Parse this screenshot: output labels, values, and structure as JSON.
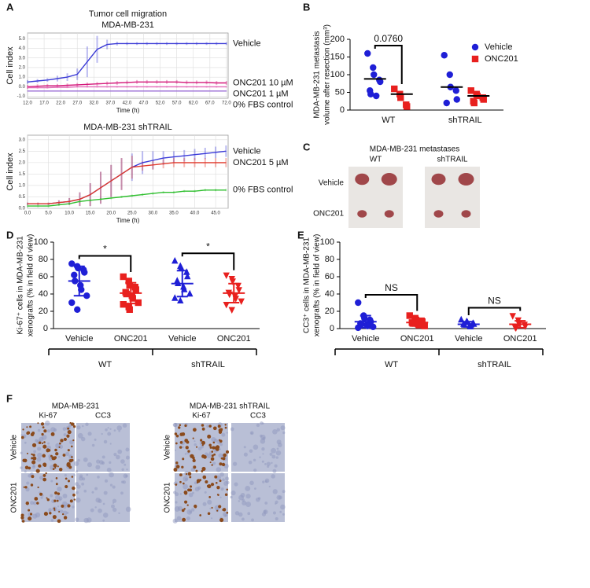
{
  "panel_labels": [
    "A",
    "B",
    "C",
    "D",
    "E",
    "F"
  ],
  "chart_data": [
    {
      "type": "line",
      "title": "Tumor cell migration",
      "subtitle": "MDA-MB-231",
      "xlabel": "Time (h)",
      "ylabel": "Cell index",
      "grid": true,
      "x": [
        12,
        15,
        18,
        21,
        24,
        27,
        30,
        33,
        36,
        39,
        42,
        45,
        48,
        51,
        54,
        57,
        60,
        63,
        66,
        69,
        72
      ],
      "xlim": [
        12,
        72.5
      ],
      "xticks": [
        {
          "value": 12,
          "label": "12.0"
        },
        {
          "value": 17,
          "label": "17.0"
        },
        {
          "value": 22,
          "label": "22.0"
        },
        {
          "value": 27,
          "label": "27.0"
        },
        {
          "value": 32,
          "label": "32.0"
        },
        {
          "value": 37,
          "label": "37.0"
        },
        {
          "value": 42,
          "label": "42.0"
        },
        {
          "value": 47,
          "label": "47.0"
        },
        {
          "value": 52,
          "label": "52.0"
        },
        {
          "value": 57,
          "label": "57.0"
        },
        {
          "value": 62,
          "label": "62.0"
        },
        {
          "value": 67,
          "label": "67.0"
        },
        {
          "value": 72,
          "label": "72.0"
        }
      ],
      "ylim": [
        -1.2,
        5.6
      ],
      "yticks": [
        {
          "value": -1,
          "label": "-1.0"
        },
        {
          "value": 0,
          "label": "0.0"
        },
        {
          "value": 1,
          "label": "1.0"
        },
        {
          "value": 2,
          "label": "2.0"
        },
        {
          "value": 3,
          "label": "3.0"
        },
        {
          "value": 4,
          "label": "4.0"
        },
        {
          "value": 5,
          "label": "5.0"
        }
      ],
      "series": [
        {
          "name": "Vehicle",
          "color": "#3b3bd6",
          "values": [
            0.5,
            0.6,
            0.7,
            0.85,
            1.0,
            1.3,
            2.6,
            3.9,
            4.4,
            4.5,
            4.5,
            4.5,
            4.5,
            4.5,
            4.5,
            4.5,
            4.5,
            4.5,
            4.5,
            4.5,
            4.5
          ],
          "errors": [
            0.2,
            0.2,
            0.2,
            0.3,
            0.4,
            0.6,
            1.6,
            1.4,
            0.5,
            0.2,
            0.15,
            0.15,
            0.15,
            0.15,
            0.15,
            0.15,
            0.15,
            0.15,
            0.15,
            0.15,
            0.15
          ]
        },
        {
          "name": "ONC201 10 µM",
          "color": "#d4187a",
          "values": [
            0.0,
            0.05,
            0.1,
            0.1,
            0.15,
            0.2,
            0.25,
            0.3,
            0.35,
            0.4,
            0.45,
            0.5,
            0.5,
            0.5,
            0.5,
            0.5,
            0.45,
            0.45,
            0.45,
            0.4,
            0.4
          ],
          "errors": [
            0.2,
            0.2,
            0.2,
            0.2,
            0.2,
            0.2,
            0.2,
            0.2,
            0.2,
            0.2,
            0.2,
            0.2,
            0.2,
            0.2,
            0.2,
            0.2,
            0.2,
            0.2,
            0.2,
            0.2,
            0.2
          ]
        },
        {
          "name": "ONC201 1 µM",
          "color": "#e36bb8",
          "values": [
            -0.1,
            -0.1,
            -0.1,
            -0.05,
            -0.05,
            0,
            0,
            0,
            0,
            0,
            0,
            0,
            0,
            0,
            0,
            0,
            0,
            0,
            0,
            0,
            0
          ],
          "errors": [
            0.1,
            0.1,
            0.1,
            0.1,
            0.1,
            0.1,
            0.1,
            0.1,
            0.1,
            0.1,
            0.1,
            0.1,
            0.1,
            0.1,
            0.1,
            0.1,
            0.1,
            0.1,
            0.1,
            0.1,
            0.1
          ]
        },
        {
          "name": "0% FBS control",
          "color": "#9a6bd6",
          "values": [
            -0.45,
            -0.45,
            -0.45,
            -0.45,
            -0.45,
            -0.45,
            -0.45,
            -0.45,
            -0.45,
            -0.45,
            -0.45,
            -0.45,
            -0.45,
            -0.45,
            -0.45,
            -0.45,
            -0.45,
            -0.45,
            -0.45,
            -0.45,
            -0.45
          ],
          "errors": [
            0.05,
            0.05,
            0.05,
            0.05,
            0.05,
            0.05,
            0.05,
            0.05,
            0.05,
            0.05,
            0.05,
            0.05,
            0.05,
            0.05,
            0.05,
            0.05,
            0.05,
            0.05,
            0.05,
            0.05,
            0.05
          ]
        }
      ]
    },
    {
      "type": "line",
      "title": "MDA-MB-231 shTRAIL",
      "xlabel": "Time (h)",
      "ylabel": "Cell index",
      "grid": true,
      "x": [
        0,
        2.5,
        5,
        7.5,
        10,
        12.5,
        15,
        17.5,
        20,
        22.5,
        25,
        27.5,
        30,
        32.5,
        35,
        37.5,
        40,
        42.5,
        45,
        47.5
      ],
      "xlim": [
        0,
        48
      ],
      "xticks": [
        {
          "value": 0,
          "label": "0.0"
        },
        {
          "value": 5,
          "label": "5.0"
        },
        {
          "value": 10,
          "label": "10.0"
        },
        {
          "value": 15,
          "label": "15.0"
        },
        {
          "value": 20,
          "label": "20.0"
        },
        {
          "value": 25,
          "label": "25.0"
        },
        {
          "value": 30,
          "label": "30.0"
        },
        {
          "value": 35,
          "label": "35.0"
        },
        {
          "value": 40,
          "label": "40.0"
        },
        {
          "value": 45,
          "label": "45.0"
        }
      ],
      "ylim": [
        0,
        3.2
      ],
      "yticks": [
        {
          "value": 0,
          "label": "0.0"
        },
        {
          "value": 0.5,
          "label": "0.5"
        },
        {
          "value": 1,
          "label": "1.0"
        },
        {
          "value": 1.5,
          "label": "1.5"
        },
        {
          "value": 2,
          "label": "2.0"
        },
        {
          "value": 2.5,
          "label": "2.5"
        },
        {
          "value": 3,
          "label": "3.0"
        }
      ],
      "series": [
        {
          "name": "Vehicle",
          "color": "#3a3ad8",
          "values": [
            0.2,
            0.2,
            0.2,
            0.25,
            0.3,
            0.4,
            0.6,
            0.9,
            1.2,
            1.5,
            1.8,
            2.0,
            2.1,
            2.2,
            2.25,
            2.3,
            2.35,
            2.4,
            2.45,
            2.5
          ],
          "errors": [
            0.05,
            0.05,
            0.05,
            0.1,
            0.15,
            0.3,
            0.5,
            0.7,
            0.7,
            0.7,
            0.6,
            0.5,
            0.4,
            0.3,
            0.25,
            0.25,
            0.25,
            0.25,
            0.25,
            0.25
          ]
        },
        {
          "name": "ONC201 5 µM",
          "color": "#e0392b",
          "values": [
            0.2,
            0.2,
            0.2,
            0.25,
            0.3,
            0.4,
            0.6,
            0.9,
            1.2,
            1.5,
            1.8,
            1.85,
            1.9,
            1.95,
            2.0,
            2.0,
            2.0,
            2.0,
            2.0,
            2.0
          ],
          "errors": [
            0.05,
            0.05,
            0.05,
            0.1,
            0.15,
            0.3,
            0.5,
            0.7,
            0.7,
            0.7,
            0.5,
            0.2,
            0.2,
            0.2,
            0.2,
            0.2,
            0.2,
            0.2,
            0.2,
            0.2
          ]
        },
        {
          "name": "0% FBS control",
          "color": "#2fbf2f",
          "values": [
            0.1,
            0.1,
            0.1,
            0.15,
            0.2,
            0.3,
            0.35,
            0.4,
            0.45,
            0.5,
            0.55,
            0.6,
            0.65,
            0.7,
            0.7,
            0.75,
            0.75,
            0.8,
            0.8,
            0.8
          ],
          "errors": [
            0.05,
            0.05,
            0.05,
            0.05,
            0.05,
            0.05,
            0.05,
            0.05,
            0.05,
            0.05,
            0.05,
            0.05,
            0.05,
            0.05,
            0.05,
            0.05,
            0.05,
            0.05,
            0.05,
            0.05
          ]
        }
      ]
    },
    {
      "type": "dot",
      "ylabel": [
        "MDA-MB-231 metastasis",
        "volume after resection (mm³)"
      ],
      "categories": [
        "WT",
        "shTRAIL"
      ],
      "ylim": [
        0,
        200
      ],
      "yticks": [
        0,
        50,
        100,
        150,
        200
      ],
      "legend": "upper right",
      "mean_color": "#000000",
      "annotations": [
        "0.0760"
      ],
      "series": [
        {
          "name": "Vehicle",
          "color": "#1f1fd6",
          "marker": "circle",
          "values": [
            [
              160,
              120,
              100,
              85,
              80,
              55,
              45,
              40
            ],
            [
              155,
              100,
              65,
              55,
              30,
              20
            ]
          ],
          "means": [
            88,
            65
          ]
        },
        {
          "name": "ONC201",
          "color": "#e8201e",
          "marker": "square",
          "values": [
            [
              60,
              45,
              35,
              15,
              10
            ],
            [
              55,
              45,
              40,
              35,
              30,
              25,
              20
            ]
          ],
          "means": [
            45,
            40
          ]
        }
      ]
    },
    {
      "type": "dot",
      "ylabel": [
        "Ki-67⁺ cells in MDA-MB-231",
        "xenografts (% in field of view)"
      ],
      "categories": [
        "Vehicle",
        "ONC201",
        "Vehicle",
        "ONC201"
      ],
      "groups": [
        "WT",
        "shTRAIL"
      ],
      "ylim": [
        0,
        100
      ],
      "yticks": [
        0,
        20,
        40,
        60,
        80,
        100
      ],
      "annotations": [
        "*",
        "*"
      ],
      "colors": [
        "#1f1fd6",
        "#e8201e",
        "#1f1fd6",
        "#e8201e"
      ],
      "markers": [
        "circle",
        "square",
        "triangle",
        "triangle-down"
      ],
      "points": [
        [
          75,
          72,
          70,
          68,
          65,
          62,
          55,
          50,
          45,
          38,
          30,
          22
        ],
        [
          60,
          55,
          50,
          48,
          45,
          42,
          40,
          38,
          35,
          30,
          28,
          25,
          22
        ],
        [
          78,
          72,
          70,
          65,
          60,
          55,
          52,
          48,
          45,
          40,
          35,
          32
        ],
        [
          62,
          58,
          55,
          50,
          45,
          42,
          40,
          38,
          35,
          32,
          28,
          22
        ]
      ],
      "means": [
        55,
        41,
        52,
        41
      ],
      "sds": [
        17,
        12,
        15,
        11
      ]
    },
    {
      "type": "dot",
      "ylabel": [
        "CC3⁺ cells in MDA-MB-231",
        "xenografts (% in field of view)"
      ],
      "categories": [
        "Vehicle",
        "ONC201",
        "Vehicle",
        "ONC201"
      ],
      "groups": [
        "WT",
        "shTRAIL"
      ],
      "ylim": [
        0,
        100
      ],
      "yticks": [
        0,
        20,
        40,
        60,
        80,
        100
      ],
      "annotations": [
        "NS",
        "NS"
      ],
      "colors": [
        "#1f1fd6",
        "#e8201e",
        "#1f1fd6",
        "#e8201e"
      ],
      "markers": [
        "circle",
        "square",
        "triangle",
        "triangle-down"
      ],
      "points": [
        [
          30,
          15,
          12,
          10,
          8,
          6,
          5,
          4,
          3,
          2,
          1
        ],
        [
          15,
          12,
          10,
          9,
          8,
          7,
          6,
          5,
          4,
          3
        ],
        [
          10,
          8,
          7,
          6,
          5,
          5,
          4,
          3,
          2
        ],
        [
          15,
          10,
          6,
          5,
          3,
          2,
          1
        ]
      ],
      "means": [
        8,
        7,
        5,
        5
      ],
      "sds": [
        7,
        4,
        3,
        4
      ]
    }
  ],
  "panel_c": {
    "title": "MDA-MB-231 metastases",
    "columns": [
      "WT",
      "shTRAIL"
    ],
    "rows": [
      "Vehicle",
      "ONC201"
    ]
  },
  "panel_f": {
    "groups": [
      {
        "title": "MDA-MB-231",
        "columns": [
          "Ki-67",
          "CC3"
        ],
        "rows": [
          "Vehicle",
          "ONC201"
        ]
      },
      {
        "title": "MDA-MB-231 shTRAIL",
        "columns": [
          "Ki-67",
          "CC3"
        ],
        "rows": [
          "Vehicle",
          "ONC201"
        ]
      }
    ]
  }
}
